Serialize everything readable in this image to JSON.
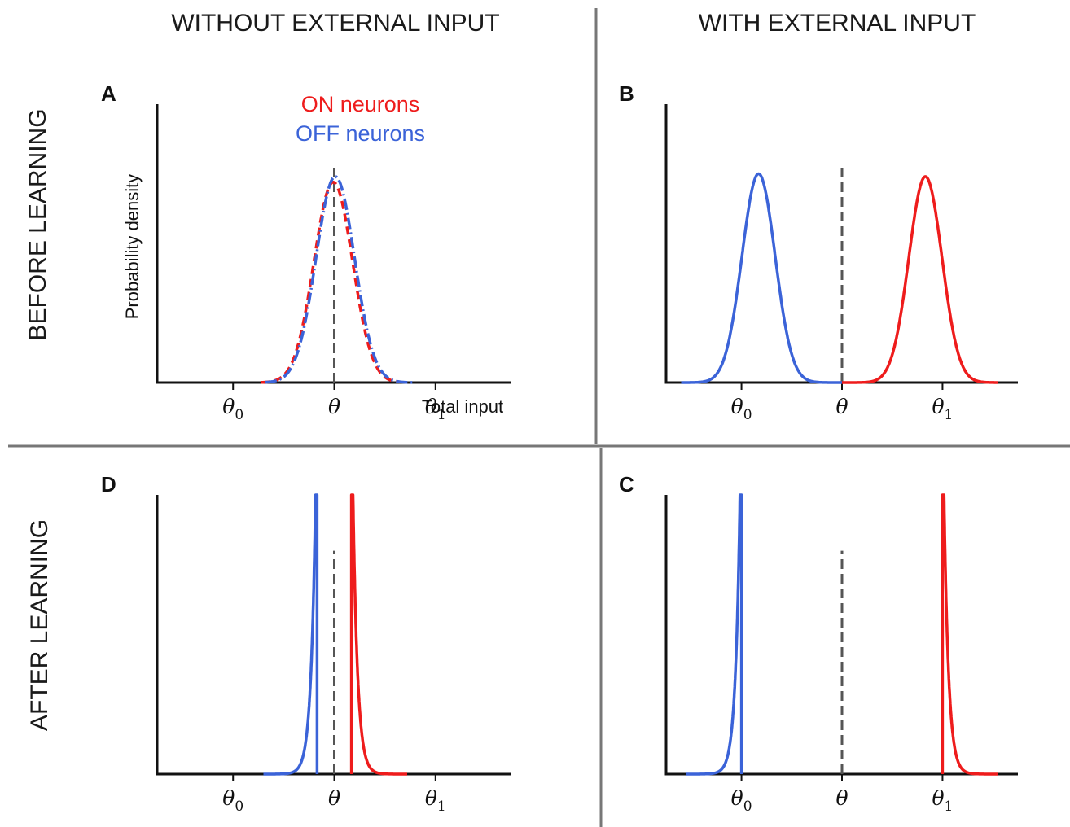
{
  "headers": {
    "col_left": "WITHOUT EXTERNAL INPUT",
    "col_right": "WITH EXTERNAL INPUT",
    "row_top": "BEFORE LEARNING",
    "row_bottom": "AFTER LEARNING"
  },
  "colors": {
    "on": "#ee1c1c",
    "off": "#3b63d8",
    "threshold": "#555555",
    "divider": "#777777"
  },
  "chart_data": [
    {
      "panel": "A",
      "type": "line",
      "xlabel": "Total input",
      "ylabel": "Probability density",
      "ticks": [
        {
          "x": -1,
          "label": "θ",
          "sub": "0"
        },
        {
          "x": 0,
          "label": "θ",
          "sub": ""
        },
        {
          "x": 1,
          "label": "θ",
          "sub": "1"
        }
      ],
      "xlim": [
        -1.75,
        1.75
      ],
      "ylim": [
        0,
        1.0
      ],
      "threshold": {
        "x": 0,
        "height": 0.78
      },
      "legend": [
        {
          "label": "ON neurons",
          "color": "#ee1c1c"
        },
        {
          "label": "OFF neurons",
          "color": "#3b63d8"
        }
      ],
      "series": [
        {
          "name": "ON neurons",
          "kind": "gauss",
          "mu": -0.01,
          "sigma": 0.19,
          "peak": 0.72,
          "range": [
            -0.72,
            0.65
          ],
          "dash": "10 6",
          "color": "#ee1c1c"
        },
        {
          "name": "OFF neurons",
          "kind": "gauss",
          "mu": 0.01,
          "sigma": 0.19,
          "peak": 0.74,
          "range": [
            -0.68,
            0.78
          ],
          "dash": "14 4 2 4",
          "color": "#3b63d8"
        }
      ]
    },
    {
      "panel": "B",
      "type": "line",
      "xlabel": "",
      "ylabel": "",
      "ticks": [
        {
          "x": -1,
          "label": "θ",
          "sub": "0"
        },
        {
          "x": 0,
          "label": "θ",
          "sub": ""
        },
        {
          "x": 1,
          "label": "θ",
          "sub": "1"
        }
      ],
      "xlim": [
        -1.75,
        1.75
      ],
      "ylim": [
        0,
        1.0
      ],
      "threshold": {
        "x": 0,
        "height": 0.78
      },
      "legend": [],
      "series": [
        {
          "name": "",
          "kind": "gauss",
          "mu": -0.83,
          "sigma": 0.165,
          "peak": 0.75,
          "range": [
            -1.6,
            0.0
          ],
          "dash": "",
          "color": "#3b63d8"
        },
        {
          "name": "",
          "kind": "gauss",
          "mu": 0.83,
          "sigma": 0.165,
          "peak": 0.74,
          "range": [
            0.0,
            1.55
          ],
          "dash": "",
          "color": "#ee1c1c"
        }
      ]
    },
    {
      "panel": "D",
      "type": "line",
      "xlabel": "",
      "ylabel": "",
      "ticks": [
        {
          "x": -1,
          "label": "θ",
          "sub": "0"
        },
        {
          "x": 0,
          "label": "θ",
          "sub": ""
        },
        {
          "x": 1,
          "label": "θ",
          "sub": "1"
        }
      ],
      "xlim": [
        -1.75,
        1.75
      ],
      "ylim": [
        0,
        1.0
      ],
      "threshold": {
        "x": 0,
        "height": 0.8
      },
      "legend": [],
      "series": [
        {
          "name": "",
          "kind": "sharp-left",
          "edge": -0.17,
          "tau": 0.045,
          "range": [
            -0.7,
            -0.17
          ],
          "color": "#3b63d8"
        },
        {
          "name": "",
          "kind": "sharp-right",
          "edge": 0.17,
          "tau": 0.045,
          "range": [
            0.17,
            0.72
          ],
          "color": "#ee1c1c"
        }
      ]
    },
    {
      "panel": "C",
      "type": "line",
      "xlabel": "",
      "ylabel": "",
      "ticks": [
        {
          "x": -1,
          "label": "θ",
          "sub": "0"
        },
        {
          "x": 0,
          "label": "θ",
          "sub": ""
        },
        {
          "x": 1,
          "label": "θ",
          "sub": "1"
        }
      ],
      "xlim": [
        -1.75,
        1.75
      ],
      "ylim": [
        0,
        1.0
      ],
      "threshold": {
        "x": 0,
        "height": 0.8
      },
      "legend": [],
      "series": [
        {
          "name": "",
          "kind": "sharp-left",
          "edge": -1.0,
          "tau": 0.045,
          "range": [
            -1.55,
            -1.0
          ],
          "color": "#3b63d8"
        },
        {
          "name": "",
          "kind": "sharp-right",
          "edge": 1.0,
          "tau": 0.045,
          "range": [
            1.0,
            1.55
          ],
          "color": "#ee1c1c"
        }
      ]
    }
  ]
}
